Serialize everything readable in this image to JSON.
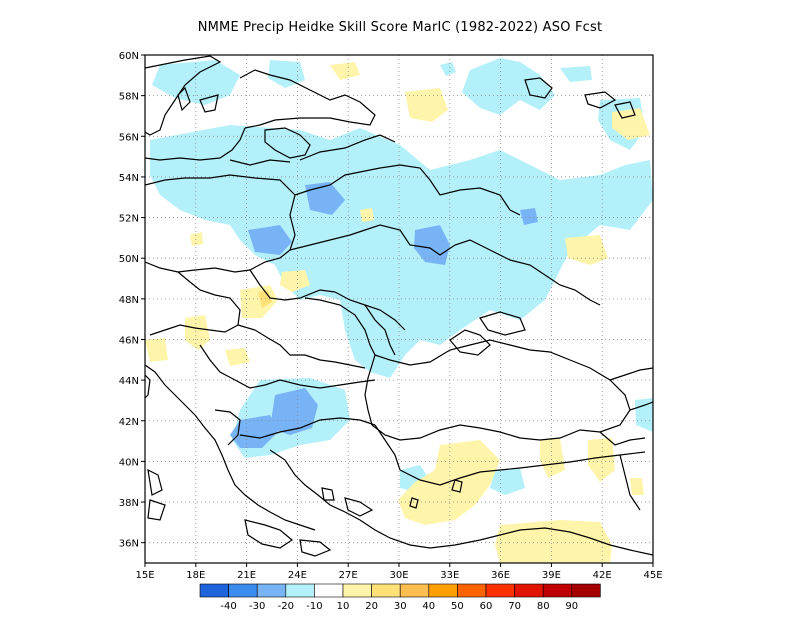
{
  "title": "NMME Precip Heidke Skill Score MarIC (1982-2022) ASO Fcst",
  "map": {
    "lon_range": [
      15,
      45
    ],
    "lat_range": [
      35,
      60
    ],
    "lat_ticks": [
      "36N",
      "38N",
      "40N",
      "42N",
      "44N",
      "46N",
      "48N",
      "50N",
      "52N",
      "54N",
      "56N",
      "58N",
      "60N"
    ],
    "lon_ticks": [
      "15E",
      "18E",
      "21E",
      "24E",
      "27E",
      "30E",
      "33E",
      "36E",
      "39E",
      "42E",
      "45E"
    ],
    "grid": "dotted"
  },
  "colorbar": {
    "colors": [
      "#1e64dc",
      "#3c8cf0",
      "#78b4f5",
      "#b4f0fa",
      "#ffffff",
      "#fff5aa",
      "#ffe178",
      "#ffbe50",
      "#ffa000",
      "#ff6400",
      "#ff3200",
      "#e11400",
      "#c00000",
      "#a50000"
    ],
    "labels": [
      "-40",
      "-30",
      "-20",
      "-10",
      "10",
      "20",
      "30",
      "40",
      "50",
      "60",
      "70",
      "80",
      "90"
    ]
  }
}
